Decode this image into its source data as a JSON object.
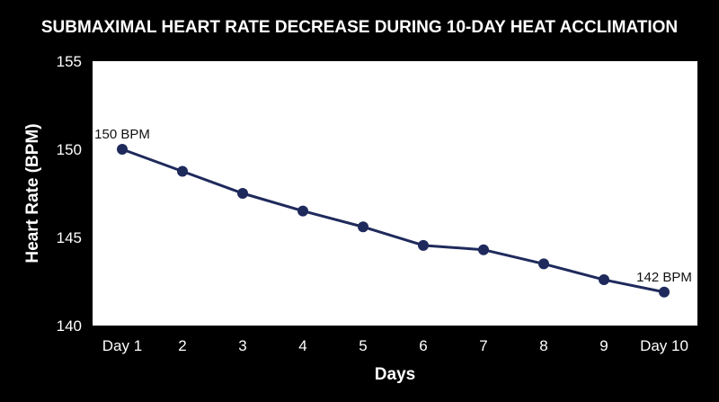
{
  "chart_data": {
    "type": "line",
    "title": "SUBMAXIMAL HEART RATE DECREASE DURING 10-DAY HEAT ACCLIMATION",
    "xlabel": "Days",
    "ylabel": "Heart Rate (BPM)",
    "categories": [
      "Day 1",
      "2",
      "3",
      "4",
      "5",
      "6",
      "7",
      "8",
      "9",
      "Day 10"
    ],
    "series": [
      {
        "values": [
          150,
          148.75,
          147.5,
          146.5,
          145.6,
          144.55,
          144.3,
          143.5,
          142.6,
          141.9
        ],
        "color": "#1f2a5c"
      }
    ],
    "ylim": [
      140,
      155
    ],
    "yticks": [
      140,
      145,
      150,
      155
    ],
    "annotations": [
      {
        "index": 0,
        "text": "150 BPM"
      },
      {
        "index": 9,
        "text": "142 BPM"
      }
    ],
    "grid": false,
    "legend": "none",
    "background": "#000000",
    "plot_background": "#ffffff",
    "text_color": "#ffffff"
  }
}
